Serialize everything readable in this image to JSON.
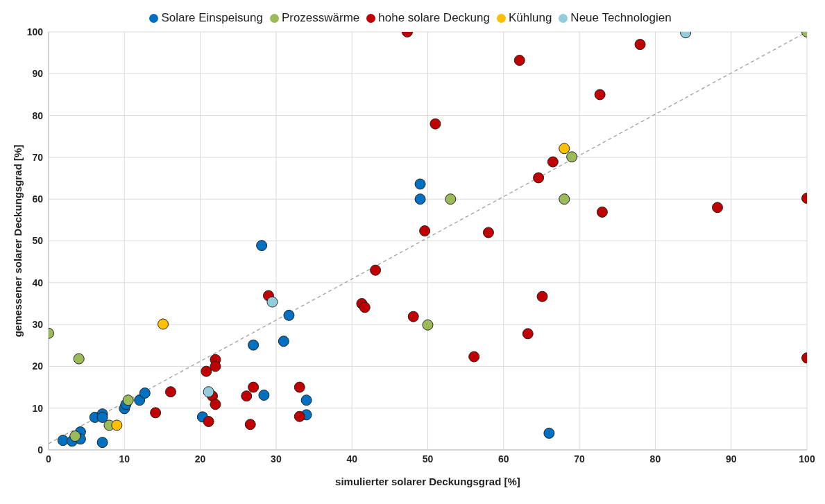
{
  "chart_data": {
    "type": "scatter",
    "xlabel": "simulierter solarer Deckungsgrad [%]",
    "ylabel": "gemessener solarer Deckungsgrad [%]",
    "xlim": [
      0,
      100
    ],
    "ylim": [
      0,
      100
    ],
    "xticks": [
      0,
      10,
      20,
      30,
      40,
      50,
      60,
      70,
      80,
      90,
      100
    ],
    "yticks": [
      0,
      10,
      20,
      30,
      40,
      50,
      60,
      70,
      80,
      90,
      100
    ],
    "grid": true,
    "legend": "top",
    "marker": "circle",
    "series": [
      {
        "name": "Solare Einspeisung",
        "color": "#0070c0",
        "x": [
          1.9,
          3,
          3.1,
          4.2,
          4.2,
          6.1,
          7.1,
          7.1,
          7.1,
          10,
          10.2,
          12,
          12.7,
          20.3,
          21,
          27,
          31,
          31.7,
          28.4,
          34,
          34,
          28.1,
          49,
          49,
          66
        ],
        "values": [
          2.3,
          null,
          2.1,
          4.3,
          2.6,
          7.8,
          8.6,
          7.8,
          1.8,
          9.9,
          10.9,
          11.9,
          13.6,
          7.9,
          null,
          25.1,
          26,
          32.2,
          13.1,
          11.9,
          8.4,
          48.9,
          63.6,
          60,
          4
        ]
      },
      {
        "name": "Prozesswärme",
        "color": "#9bbb59",
        "x": [
          0,
          4,
          3.5,
          8,
          10.5,
          50,
          53,
          68,
          69,
          100
        ],
        "values": [
          27.9,
          21.8,
          3.3,
          5.9,
          11.9,
          29.9,
          60,
          60,
          70.1,
          100
        ]
      },
      {
        "name": "hohe solare Deckung",
        "color": "#c00000",
        "x": [
          14.1,
          16.1,
          20.8,
          21.1,
          21.6,
          22,
          22,
          22,
          26.1,
          26.6,
          27,
          29,
          33.1,
          33.1,
          41.3,
          41.7,
          43.1,
          47.3,
          48.1,
          49.6,
          51,
          56.1,
          58,
          62.1,
          63.2,
          64.6,
          65.1,
          66.5,
          72.7,
          73,
          78,
          88.2,
          100,
          100
        ],
        "values": [
          8.9,
          13.9,
          18.8,
          6.8,
          12.9,
          21.6,
          20,
          10.9,
          12.9,
          6.1,
          15,
          36.9,
          15,
          8,
          35,
          34.1,
          43,
          100,
          31.9,
          52.4,
          78,
          22.3,
          52,
          93.2,
          27.8,
          65.1,
          36.7,
          68.9,
          85,
          56.9,
          97,
          58,
          60.2,
          22
        ]
      },
      {
        "name": "Kühlung",
        "color": "#ffc000",
        "x": [
          9,
          15.1,
          68
        ],
        "values": [
          5.9,
          30.1,
          72.1
        ]
      },
      {
        "name": "Neue Technologien",
        "color": "#92cddc",
        "x": [
          21.1,
          29.5,
          84
        ],
        "values": [
          13.9,
          35.4,
          99.8
        ]
      },
      {
        "type": "line",
        "color": "#a0a0a0",
        "line_style": "dashed",
        "marker": "none",
        "x": [
          0,
          100
        ],
        "values": [
          1.5,
          100
        ]
      }
    ]
  }
}
